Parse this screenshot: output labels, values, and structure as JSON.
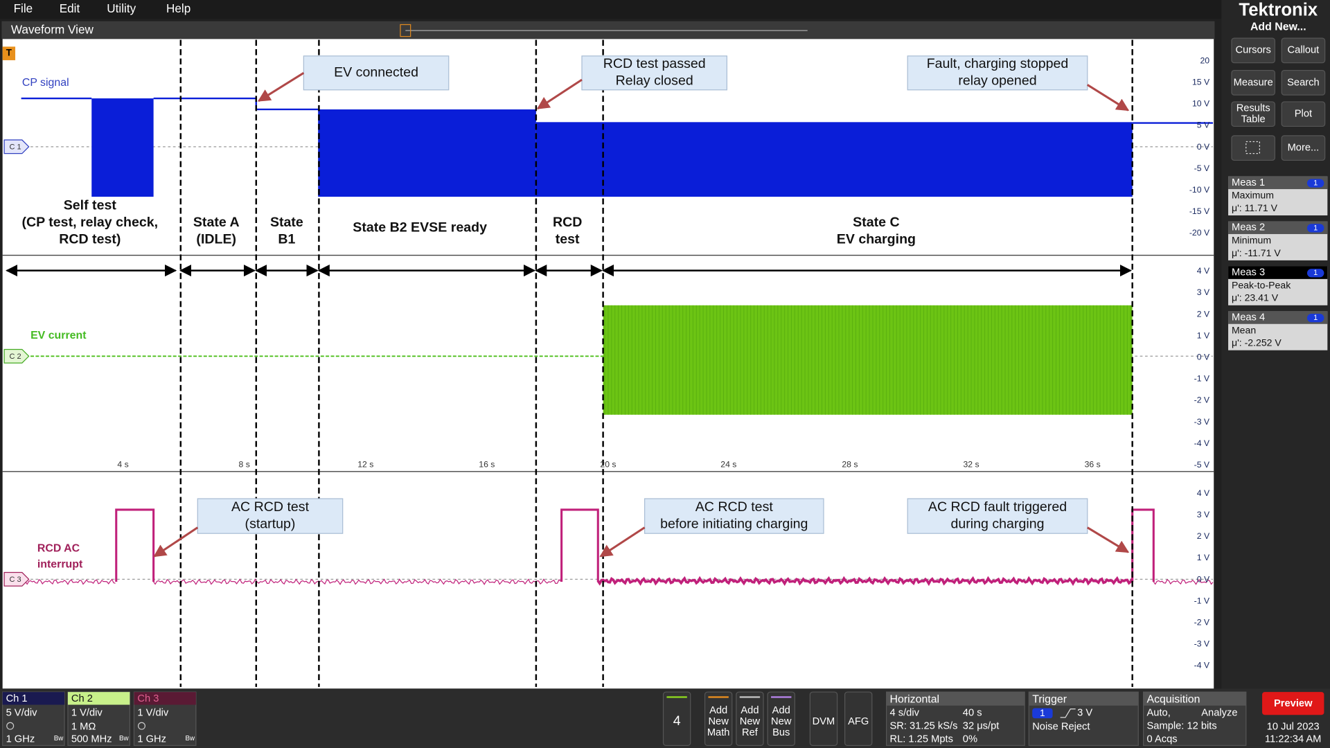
{
  "menu": [
    "File",
    "Edit",
    "Utility",
    "Help"
  ],
  "waveform_view": {
    "title": "Waveform View",
    "trigger_marker": "T",
    "plots": [
      {
        "channel": "C 1",
        "label": [
          "CP signal"
        ],
        "y_labels": [
          "20",
          "15 V",
          "10 V",
          "5 V",
          "0 V",
          "-5 V",
          "-10 V",
          "-15 V",
          "-20 V"
        ]
      },
      {
        "channel": "C 2",
        "label": [
          "EV current"
        ],
        "y_labels": [
          "4 V",
          "3 V",
          "2 V",
          "1 V",
          "0 V",
          "-1 V",
          "-2 V",
          "-3 V",
          "-4 V",
          "-5 V"
        ]
      },
      {
        "channel": "C 3",
        "label": [
          "RCD AC",
          "interrupt"
        ],
        "y_labels": [
          "4 V",
          "3 V",
          "2 V",
          "1 V",
          "0 V",
          "-1 V",
          "-2 V",
          "-3 V",
          "-4 V"
        ]
      }
    ],
    "time_labels": [
      "4 s",
      "8 s",
      "12 s",
      "16 s",
      "20 s",
      "24 s",
      "28 s",
      "32 s",
      "36 s"
    ],
    "states": [
      [
        "Self test",
        "(CP test, relay check,",
        "RCD test)"
      ],
      [
        "State A",
        "(IDLE)"
      ],
      [
        "State",
        "B1"
      ],
      [
        "State B2 EVSE ready"
      ],
      [
        "RCD",
        "test"
      ],
      [
        "State C",
        "EV charging"
      ]
    ],
    "callouts": [
      [
        "EV connected"
      ],
      [
        "RCD test passed",
        "Relay closed"
      ],
      [
        "Fault, charging stopped",
        "relay opened"
      ],
      [
        "AC RCD test",
        "(startup)"
      ],
      [
        "AC RCD test",
        "before initiating charging"
      ],
      [
        "AC RCD fault triggered",
        "during charging"
      ]
    ]
  },
  "side_panel": {
    "brand": "Tektronix",
    "add_new": "Add New...",
    "buttons": [
      [
        "Cursors"
      ],
      [
        "Callout"
      ],
      [
        "Measure"
      ],
      [
        "Search"
      ],
      [
        "Results",
        "Table"
      ],
      [
        "Plot"
      ],
      [
        "More..."
      ]
    ],
    "measurements": [
      {
        "name": "Meas 1",
        "badge": "1",
        "type": "Maximum",
        "value": "μ': 11.71 V"
      },
      {
        "name": "Meas 2",
        "badge": "1",
        "type": "Minimum",
        "value": "μ': -11.71 V"
      },
      {
        "name": "Meas 3",
        "badge": "1",
        "type": "Peak-to-Peak",
        "value": "μ': 23.41 V"
      },
      {
        "name": "Meas 4",
        "badge": "1",
        "type": "Mean",
        "value": "μ': -2.252 V"
      }
    ]
  },
  "bottom_bar": {
    "channels": [
      {
        "name": "Ch 1",
        "lines": [
          "5 V/div",
          "1 GHz"
        ],
        "bandwidth_mark": "Bw"
      },
      {
        "name": "Ch 2",
        "lines": [
          "1 V/div",
          "1 MΩ",
          "500 MHz"
        ],
        "bandwidth_mark": "Bw"
      },
      {
        "name": "Ch 3",
        "lines": [
          "1 V/div",
          "1 GHz"
        ],
        "bandwidth_mark": "Bw"
      }
    ],
    "waveform_count": "4",
    "add_buttons": [
      [
        "Add",
        "New",
        "Math"
      ],
      [
        "Add",
        "New",
        "Ref"
      ],
      [
        "Add",
        "New",
        "Bus"
      ]
    ],
    "tools": [
      "DVM",
      "AFG"
    ],
    "horizontal": {
      "title": "Horizontal",
      "rows": [
        [
          "4 s/div",
          "40 s"
        ],
        [
          "SR: 31.25 kS/s",
          "32 μs/pt"
        ],
        [
          "RL: 1.25 Mpts",
          "0%"
        ]
      ]
    },
    "trigger": {
      "title": "Trigger",
      "source": "1",
      "level": "3 V",
      "mode": "Noise Reject"
    },
    "acquisition": {
      "title": "Acquisition",
      "rows": [
        [
          "Auto,",
          "Analyze"
        ],
        [
          "Sample: 12 bits"
        ],
        [
          "0 Acqs"
        ]
      ]
    },
    "preview": "Preview",
    "date": "10 Jul 2023",
    "time": "11:22:34 AM"
  }
}
